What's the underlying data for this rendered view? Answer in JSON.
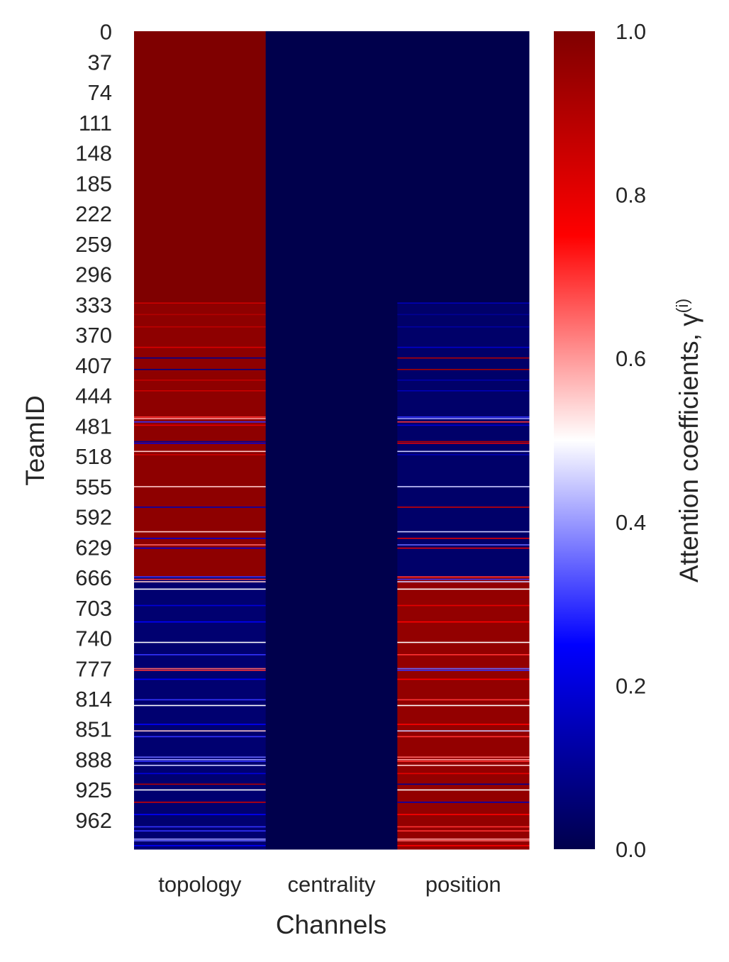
{
  "chart_data": {
    "type": "heatmap",
    "xlabel": "Channels",
    "ylabel": "TeamID",
    "colorbar_label": "Attention coefficients, γ",
    "colorbar_label_superscript": "(i)",
    "x_categories": [
      "topology",
      "centrality",
      "position"
    ],
    "y_ticks": [
      0,
      37,
      74,
      111,
      148,
      185,
      222,
      259,
      296,
      333,
      370,
      407,
      444,
      481,
      518,
      555,
      592,
      629,
      666,
      703,
      740,
      777,
      814,
      851,
      888,
      925,
      962
    ],
    "y_range": [
      0,
      998
    ],
    "value_range": [
      0.0,
      1.0
    ],
    "colorbar_ticks": [
      "0.0",
      "0.2",
      "0.4",
      "0.6",
      "0.8",
      "1.0"
    ],
    "colormap": [
      "#00004c",
      "#0000ff",
      "#ffffff",
      "#ff0000",
      "#7f0000"
    ],
    "columns": [
      {
        "name": "topology",
        "base_value": 1.0,
        "segments": [
          {
            "from": 0,
            "to": 331,
            "value": 1.0
          },
          {
            "from": 331,
            "to": 666,
            "value": 0.97
          },
          {
            "from": 666,
            "to": 998,
            "value": 0.05
          }
        ],
        "stripes": [
          {
            "row": 331,
            "value": 0.85
          },
          {
            "row": 345,
            "value": 0.9
          },
          {
            "row": 360,
            "value": 0.88
          },
          {
            "row": 385,
            "value": 0.82
          },
          {
            "row": 398,
            "value": 0.1
          },
          {
            "row": 412,
            "value": 0.08
          },
          {
            "row": 425,
            "value": 0.87
          },
          {
            "row": 438,
            "value": 0.85
          },
          {
            "row": 470,
            "value": 0.7
          },
          {
            "row": 472,
            "value": 0.6
          },
          {
            "row": 476,
            "value": 0.3
          },
          {
            "row": 480,
            "value": 0.8
          },
          {
            "row": 500,
            "value": 0.1
          },
          {
            "row": 502,
            "value": 0.2
          },
          {
            "row": 512,
            "value": 0.55
          },
          {
            "row": 516,
            "value": 0.85
          },
          {
            "row": 555,
            "value": 0.55
          },
          {
            "row": 580,
            "value": 0.15
          },
          {
            "row": 610,
            "value": 0.55
          },
          {
            "row": 618,
            "value": 0.2
          },
          {
            "row": 626,
            "value": 0.65
          },
          {
            "row": 630,
            "value": 0.2
          },
          {
            "row": 665,
            "value": 0.3
          },
          {
            "row": 668,
            "value": 0.7
          },
          {
            "row": 671,
            "value": 0.55
          },
          {
            "row": 680,
            "value": 0.5
          },
          {
            "row": 700,
            "value": 0.2
          },
          {
            "row": 720,
            "value": 0.25
          },
          {
            "row": 745,
            "value": 0.5
          },
          {
            "row": 760,
            "value": 0.3
          },
          {
            "row": 777,
            "value": 0.65
          },
          {
            "row": 779,
            "value": 0.7
          },
          {
            "row": 790,
            "value": 0.25
          },
          {
            "row": 815,
            "value": 0.3
          },
          {
            "row": 822,
            "value": 0.5
          },
          {
            "row": 845,
            "value": 0.25
          },
          {
            "row": 853,
            "value": 0.55
          },
          {
            "row": 860,
            "value": 0.3
          },
          {
            "row": 885,
            "value": 0.35
          },
          {
            "row": 888,
            "value": 0.4
          },
          {
            "row": 890,
            "value": 0.3
          },
          {
            "row": 895,
            "value": 0.45
          },
          {
            "row": 905,
            "value": 0.2
          },
          {
            "row": 918,
            "value": 0.9
          },
          {
            "row": 925,
            "value": 0.5
          },
          {
            "row": 940,
            "value": 0.85
          },
          {
            "row": 955,
            "value": 0.25
          },
          {
            "row": 970,
            "value": 0.3
          },
          {
            "row": 975,
            "value": 0.3
          },
          {
            "row": 985,
            "value": 0.4
          },
          {
            "row": 987,
            "value": 0.35
          },
          {
            "row": 993,
            "value": 0.25
          }
        ]
      },
      {
        "name": "centrality",
        "base_value": 0.0,
        "segments": [
          {
            "from": 0,
            "to": 998,
            "value": 0.0
          }
        ],
        "stripes": []
      },
      {
        "name": "position",
        "base_value": 0.0,
        "segments": [
          {
            "from": 0,
            "to": 331,
            "value": 0.0
          },
          {
            "from": 331,
            "to": 666,
            "value": 0.04
          },
          {
            "from": 666,
            "to": 998,
            "value": 0.96
          }
        ],
        "stripes": [
          {
            "row": 331,
            "value": 0.15
          },
          {
            "row": 345,
            "value": 0.1
          },
          {
            "row": 360,
            "value": 0.12
          },
          {
            "row": 385,
            "value": 0.18
          },
          {
            "row": 398,
            "value": 0.9
          },
          {
            "row": 412,
            "value": 0.92
          },
          {
            "row": 425,
            "value": 0.13
          },
          {
            "row": 438,
            "value": 0.15
          },
          {
            "row": 470,
            "value": 0.3
          },
          {
            "row": 472,
            "value": 0.4
          },
          {
            "row": 476,
            "value": 0.7
          },
          {
            "row": 480,
            "value": 0.2
          },
          {
            "row": 500,
            "value": 0.9
          },
          {
            "row": 502,
            "value": 0.8
          },
          {
            "row": 512,
            "value": 0.45
          },
          {
            "row": 516,
            "value": 0.15
          },
          {
            "row": 555,
            "value": 0.45
          },
          {
            "row": 580,
            "value": 0.85
          },
          {
            "row": 610,
            "value": 0.45
          },
          {
            "row": 618,
            "value": 0.8
          },
          {
            "row": 626,
            "value": 0.35
          },
          {
            "row": 630,
            "value": 0.8
          },
          {
            "row": 665,
            "value": 0.7
          },
          {
            "row": 668,
            "value": 0.3
          },
          {
            "row": 671,
            "value": 0.45
          },
          {
            "row": 680,
            "value": 0.5
          },
          {
            "row": 700,
            "value": 0.8
          },
          {
            "row": 720,
            "value": 0.75
          },
          {
            "row": 745,
            "value": 0.5
          },
          {
            "row": 760,
            "value": 0.7
          },
          {
            "row": 777,
            "value": 0.35
          },
          {
            "row": 779,
            "value": 0.3
          },
          {
            "row": 790,
            "value": 0.75
          },
          {
            "row": 815,
            "value": 0.7
          },
          {
            "row": 822,
            "value": 0.5
          },
          {
            "row": 845,
            "value": 0.75
          },
          {
            "row": 853,
            "value": 0.45
          },
          {
            "row": 860,
            "value": 0.7
          },
          {
            "row": 885,
            "value": 0.65
          },
          {
            "row": 888,
            "value": 0.6
          },
          {
            "row": 890,
            "value": 0.7
          },
          {
            "row": 895,
            "value": 0.55
          },
          {
            "row": 905,
            "value": 0.8
          },
          {
            "row": 918,
            "value": 0.1
          },
          {
            "row": 925,
            "value": 0.5
          },
          {
            "row": 940,
            "value": 0.15
          },
          {
            "row": 955,
            "value": 0.75
          },
          {
            "row": 970,
            "value": 0.7
          },
          {
            "row": 975,
            "value": 0.7
          },
          {
            "row": 985,
            "value": 0.6
          },
          {
            "row": 987,
            "value": 0.65
          },
          {
            "row": 993,
            "value": 0.75
          }
        ]
      }
    ]
  }
}
